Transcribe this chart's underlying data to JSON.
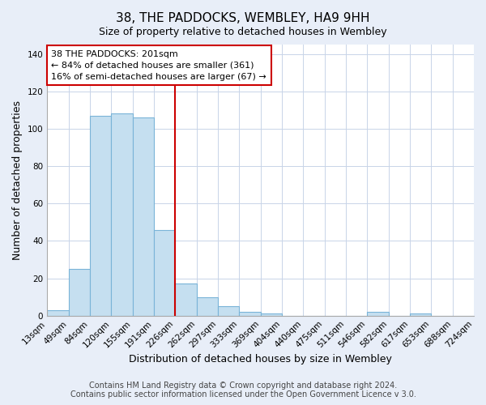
{
  "title": "38, THE PADDOCKS, WEMBLEY, HA9 9HH",
  "subtitle": "Size of property relative to detached houses in Wembley",
  "xlabel": "Distribution of detached houses by size in Wembley",
  "ylabel": "Number of detached properties",
  "bar_values": [
    3,
    25,
    107,
    108,
    106,
    46,
    17,
    10,
    5,
    2,
    1,
    0,
    0,
    0,
    0,
    2,
    0,
    1,
    0,
    0
  ],
  "bin_labels": [
    "13sqm",
    "49sqm",
    "84sqm",
    "120sqm",
    "155sqm",
    "191sqm",
    "226sqm",
    "262sqm",
    "297sqm",
    "333sqm",
    "369sqm",
    "404sqm",
    "440sqm",
    "475sqm",
    "511sqm",
    "546sqm",
    "582sqm",
    "617sqm",
    "653sqm",
    "688sqm",
    "724sqm"
  ],
  "bar_color": "#c5dff0",
  "bar_edge_color": "#7ab4d8",
  "annotation_box_text": "38 THE PADDOCKS: 201sqm\n← 84% of detached houses are smaller (361)\n16% of semi-detached houses are larger (67) →",
  "annotation_box_color": "#ffffff",
  "annotation_box_edge_color": "#cc0000",
  "vline_after_bar": 5,
  "ylim": [
    0,
    145
  ],
  "yticks": [
    0,
    20,
    40,
    60,
    80,
    100,
    120,
    140
  ],
  "footer_line1": "Contains HM Land Registry data © Crown copyright and database right 2024.",
  "footer_line2": "Contains public sector information licensed under the Open Government Licence v 3.0.",
  "background_color": "#e8eef8",
  "plot_background_color": "#ffffff",
  "grid_color": "#c8d4e8",
  "title_fontsize": 11,
  "axis_label_fontsize": 9,
  "tick_fontsize": 7.5,
  "footer_fontsize": 7
}
